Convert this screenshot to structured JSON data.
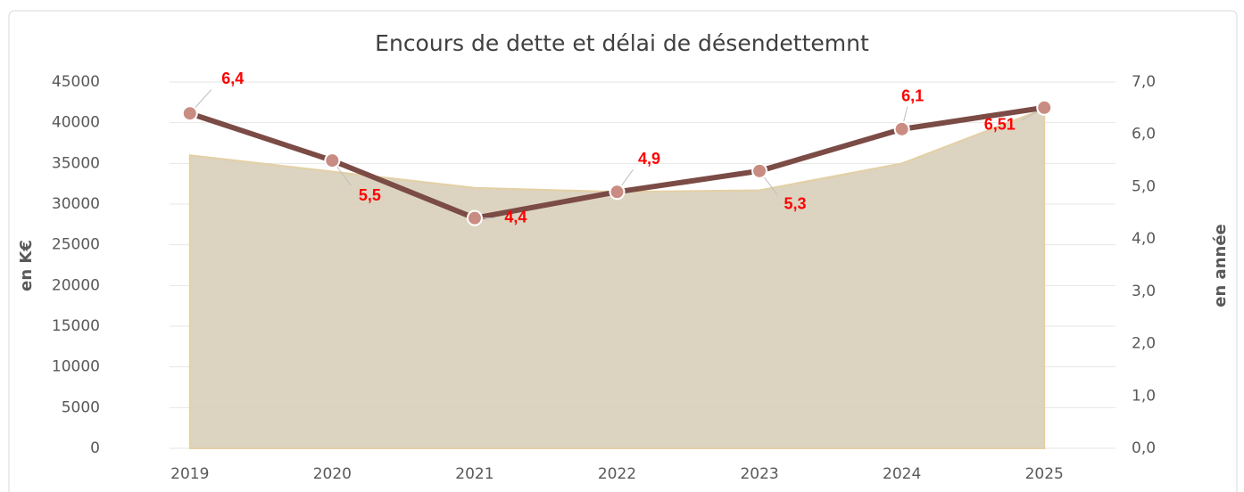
{
  "chart_data": {
    "type": "combo",
    "title": "Encours de dette et délai de désendettemnt",
    "y_label": "en K€",
    "y2_label": "en année",
    "categories": [
      "2019",
      "2020",
      "2021",
      "2022",
      "2023",
      "2024",
      "2025"
    ],
    "series": [
      {
        "type": "area",
        "color": "#d8cfb9",
        "values": [
          36000,
          34000,
          32000,
          31500,
          31700,
          35000,
          41700
        ]
      },
      {
        "type": "line",
        "axis": "y2",
        "color": "#7b4b45",
        "values": [
          6.4,
          5.5,
          4.4,
          4.9,
          5.3,
          6.1,
          6.51
        ],
        "value_labels": [
          "6,4",
          "5,5",
          "4,4",
          "4,9",
          "5,3",
          "6,1",
          "6,51"
        ]
      }
    ],
    "ylim": [
      0,
      45000
    ],
    "yticks": [
      0,
      5000,
      10000,
      15000,
      20000,
      25000,
      30000,
      35000,
      40000,
      45000
    ],
    "y2lim": [
      0,
      7
    ],
    "y2ticks": [
      {
        "value": 0,
        "label": "0,0"
      },
      {
        "value": 1,
        "label": "1,0"
      },
      {
        "value": 2,
        "label": "2,0"
      },
      {
        "value": 3,
        "label": "3,0"
      },
      {
        "value": 4,
        "label": "4,0"
      },
      {
        "value": 5,
        "label": "5,0"
      },
      {
        "value": 6,
        "label": "6,0"
      },
      {
        "value": 7,
        "label": "7,0"
      }
    ],
    "grid": true
  }
}
